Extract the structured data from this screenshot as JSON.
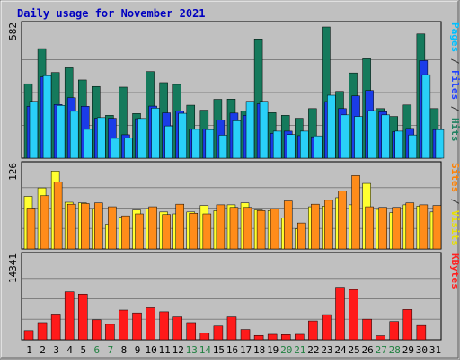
{
  "chart_data": {
    "type": "bar",
    "title": "Daily usage for November 2021",
    "categories": [
      "1",
      "2",
      "3",
      "4",
      "5",
      "6",
      "7",
      "8",
      "9",
      "10",
      "11",
      "12",
      "13",
      "14",
      "15",
      "16",
      "17",
      "18",
      "19",
      "20",
      "21",
      "22",
      "23",
      "24",
      "25",
      "26",
      "27",
      "28",
      "29",
      "30",
      "31"
    ],
    "weekend_days": [
      "6",
      "7",
      "13",
      "14",
      "20",
      "21",
      "27",
      "28"
    ],
    "panels": [
      {
        "name": "traffic",
        "ymax_label": "582",
        "ylim": [
          0,
          582
        ],
        "right_label": [
          {
            "text": "Pages",
            "color": "#00c0ff"
          },
          {
            "text": " / ",
            "color": "#333333"
          },
          {
            "text": "Files",
            "color": "#2040ff"
          },
          {
            "text": " / ",
            "color": "#333333"
          },
          {
            "text": "Hits",
            "color": "#208060"
          }
        ],
        "series": [
          {
            "name": "Hits",
            "color": "#157a5c",
            "values": [
              330,
              486,
              380,
              401,
              347,
              318,
              190,
              315,
              198,
              384,
              335,
              327,
              235,
              213,
              261,
              262,
              210,
              529,
              202,
              190,
              177,
              220,
              582,
              296,
              378,
              441,
              220,
              185,
              236,
              551,
              220
            ]
          },
          {
            "name": "Files",
            "color": "#1a3ce8",
            "values": [
              230,
              360,
              238,
              268,
              230,
              177,
              177,
              104,
              175,
              231,
              201,
              210,
              130,
              130,
              170,
              200,
              190,
              241,
              110,
              120,
              100,
              95,
              251,
              220,
              276,
              300,
              206,
              118,
              132,
              433,
              127
            ]
          },
          {
            "name": "Pages",
            "color": "#29d0f8",
            "values": [
              252,
              366,
              234,
              208,
              128,
              180,
              88,
              89,
              176,
              222,
              143,
              199,
              128,
              127,
              102,
              166,
              252,
              252,
              120,
              105,
              120,
              99,
              279,
              192,
              185,
              211,
              192,
              120,
              103,
              370,
              127
            ]
          }
        ]
      },
      {
        "name": "visits",
        "ymax_label": "126",
        "ylim": [
          0,
          126
        ],
        "right_label": [
          {
            "text": "Sites",
            "color": "#ff8000"
          },
          {
            "text": " / ",
            "color": "#333333"
          },
          {
            "text": "Visits",
            "color": "#e8e000"
          }
        ],
        "series": [
          {
            "name": "Visits",
            "color": "#ffff30",
            "values": [
              81,
              94,
              120,
              72,
              71,
              62,
              38,
              49,
              60,
              62,
              57,
              54,
              57,
              67,
              59,
              68,
              71,
              60,
              59,
              48,
              31,
              65,
              66,
              79,
              68,
              101,
              61,
              56,
              68,
              66,
              57
            ]
          },
          {
            "name": "Sites",
            "color": "#ff8c1a",
            "values": [
              63,
              82,
              103,
              69,
              70,
              71,
              65,
              51,
              54,
              65,
              53,
              69,
              55,
              54,
              68,
              64,
              64,
              59,
              62,
              74,
              40,
              69,
              75,
              89,
              113,
              65,
              64,
              64,
              71,
              68,
              67
            ]
          }
        ]
      },
      {
        "name": "kbytes",
        "ymax_label": "14341",
        "ylim": [
          0,
          14341
        ],
        "right_label": [
          {
            "text": "KBytes",
            "color": "#ff2020"
          }
        ],
        "series": [
          {
            "name": "KBytes",
            "color": "#ff1a1a",
            "values": [
              1600,
              3000,
              4500,
              8400,
              8000,
              3500,
              2700,
              5200,
              4700,
              5600,
              4900,
              4000,
              3000,
              1200,
              2400,
              4000,
              1800,
              750,
              950,
              900,
              950,
              3300,
              4400,
              9200,
              8800,
              3600,
              700,
              3200,
              5300,
              2500,
              0
            ]
          }
        ]
      }
    ]
  }
}
